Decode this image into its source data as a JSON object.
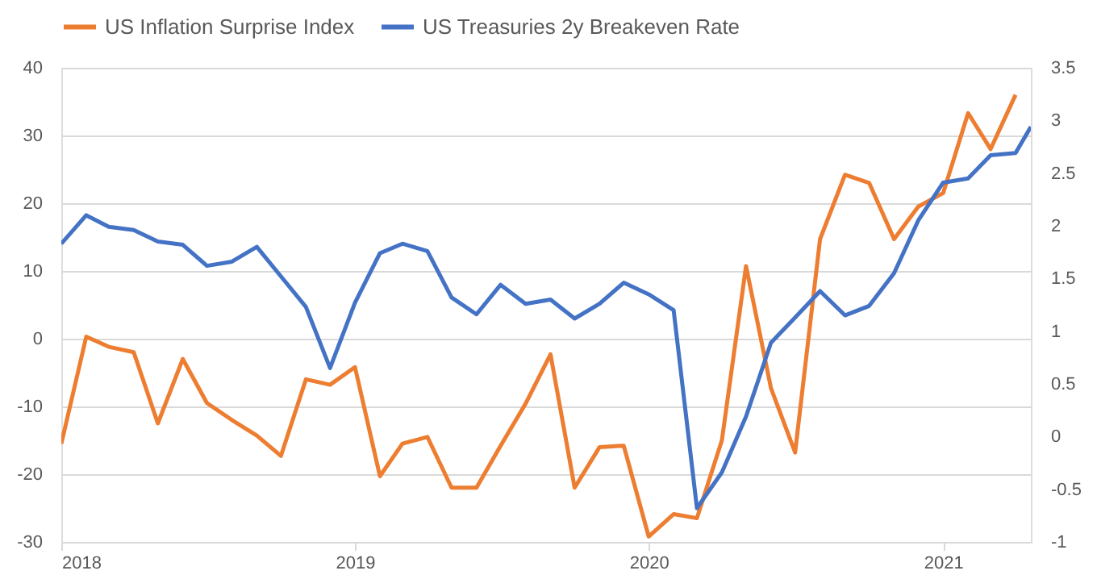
{
  "chart_data": {
    "type": "line",
    "legend": "top",
    "grid": "y",
    "line_style": "solid",
    "marker": "none",
    "xlim": [
      "2018-01-01",
      "2021-04-20"
    ],
    "xticks": [
      "2018",
      "2019",
      "2020",
      "2021"
    ],
    "ylim": [
      -30,
      40
    ],
    "yticks": [
      -30,
      -20,
      -10,
      0,
      10,
      20,
      30,
      40
    ],
    "y2lim": [
      -1,
      3.5
    ],
    "y2ticks": [
      -1,
      -0.5,
      0,
      0.5,
      1,
      1.5,
      2,
      2.5,
      3,
      3.5
    ],
    "series": [
      {
        "name": "US Inflation Surprise Index",
        "color": "#ed7d31",
        "x": [
          "2018-01",
          "2018-02",
          "2018-03",
          "2018-04",
          "2018-05",
          "2018-06",
          "2018-07",
          "2018-08",
          "2018-09",
          "2018-10",
          "2018-11",
          "2018-12",
          "2019-01",
          "2019-02",
          "2019-03",
          "2019-04",
          "2019-05",
          "2019-06",
          "2019-07",
          "2019-08",
          "2019-09",
          "2019-10",
          "2019-11",
          "2019-12",
          "2020-01",
          "2020-02",
          "2020-03",
          "2020-04",
          "2020-05",
          "2020-06",
          "2020-07",
          "2020-08",
          "2020-09",
          "2020-10",
          "2020-11",
          "2020-12",
          "2021-01",
          "2021-02",
          "2021-03",
          "2021-04"
        ],
        "values": [
          -15.5,
          0.3,
          -1.2,
          -2,
          -12.5,
          -3,
          -9.5,
          -12,
          -14.3,
          -17.3,
          -6,
          -6.8,
          -4.2,
          -20.3,
          -15.5,
          -14.5,
          -22,
          -22,
          -15.8,
          -9.6,
          -2.3,
          -22,
          -16,
          -15.8,
          -29.2,
          -25.9,
          -26.5,
          -15,
          10.7,
          -7.3,
          -16.8,
          14.7,
          24.2,
          23,
          14.7,
          19.5,
          21.5,
          33.3,
          28,
          36
        ]
      },
      {
        "name": "US Treasuries 2y Breakeven Rate",
        "color": "#4472c4",
        "axis": "y2",
        "x": [
          "2018-01",
          "2018-02",
          "2018-03",
          "2018-04",
          "2018-05",
          "2018-06",
          "2018-07",
          "2018-08",
          "2018-09",
          "2018-10",
          "2018-11",
          "2018-12",
          "2019-01",
          "2019-02",
          "2019-03",
          "2019-04",
          "2019-05",
          "2019-06",
          "2019-07",
          "2019-08",
          "2019-09",
          "2019-10",
          "2019-11",
          "2019-12",
          "2020-01",
          "2020-02",
          "2020-03",
          "2020-04",
          "2020-05",
          "2020-06",
          "2020-07",
          "2020-08",
          "2020-09",
          "2020-10",
          "2020-11",
          "2020-12",
          "2021-01",
          "2021-02",
          "2021-03",
          "2021-04",
          "2021-04-20"
        ],
        "values": [
          1.83,
          2.1,
          1.99,
          1.96,
          1.85,
          1.82,
          1.62,
          1.66,
          1.8,
          1.52,
          1.23,
          0.65,
          1.27,
          1.74,
          1.83,
          1.76,
          1.32,
          1.16,
          1.44,
          1.26,
          1.3,
          1.12,
          1.26,
          1.46,
          1.35,
          1.2,
          -0.68,
          -0.34,
          0.19,
          0.89,
          1.13,
          1.38,
          1.15,
          1.24,
          1.55,
          2.05,
          2.41,
          2.45,
          2.67,
          2.69,
          2.94
        ]
      }
    ]
  }
}
